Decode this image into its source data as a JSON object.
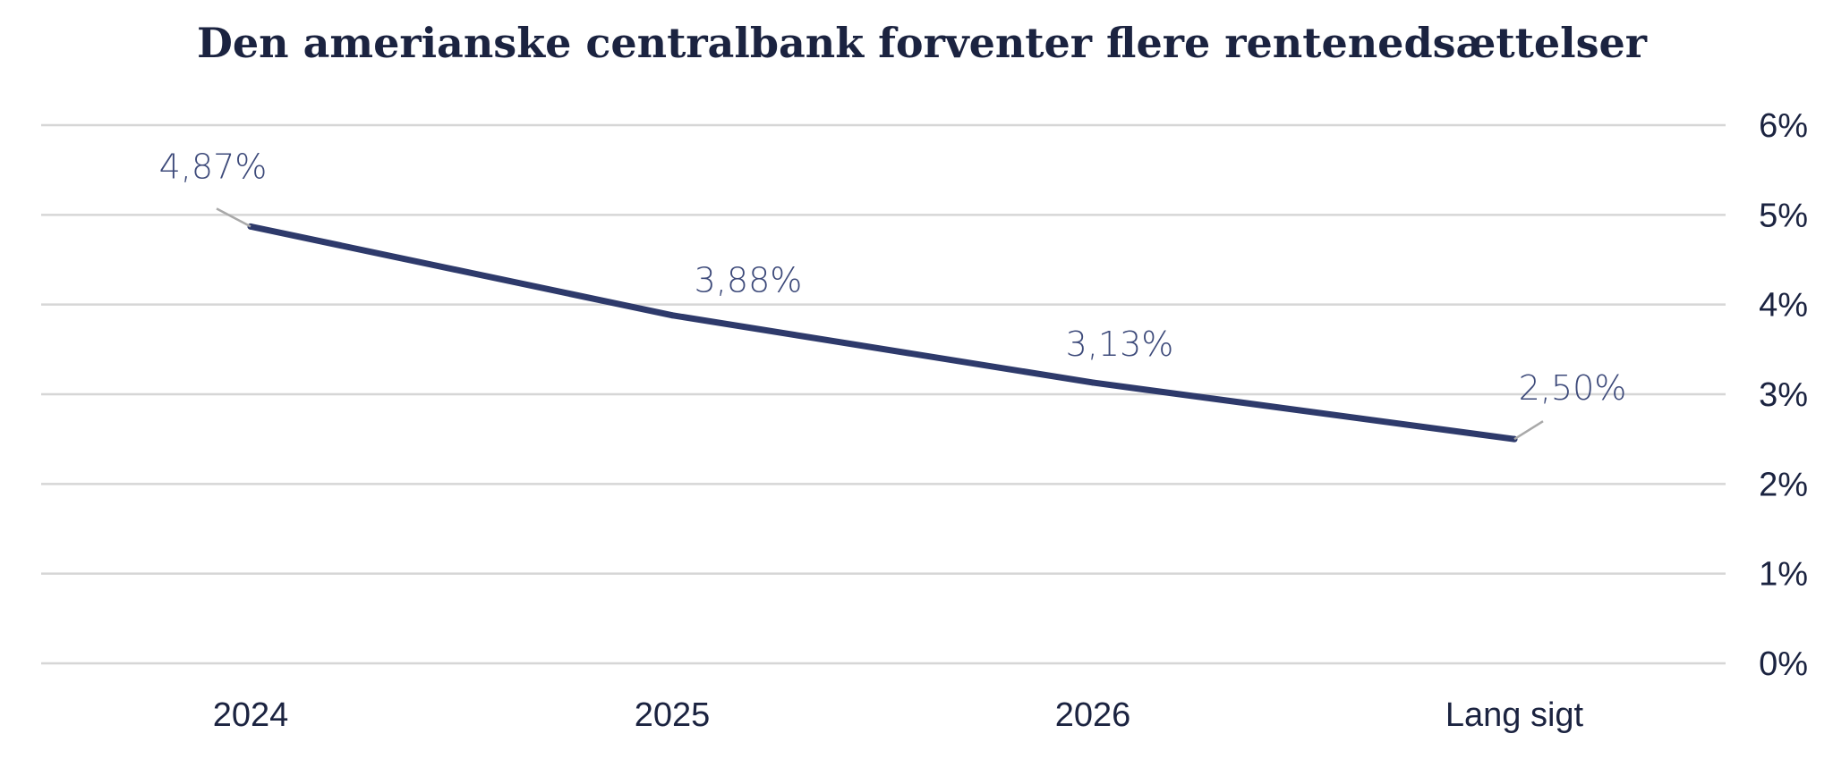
{
  "chart_data": {
    "type": "line",
    "title": "Den amerianske centralbank forventer flere rentenedsættelser",
    "categories": [
      "2024",
      "2025",
      "2026",
      "Lang sigt"
    ],
    "series": [
      {
        "values": [
          4.87,
          3.88,
          3.13,
          2.5
        ],
        "labels": [
          "4,87%",
          "3,88%",
          "3,13%",
          "2,50%"
        ]
      }
    ],
    "y_axis": {
      "min": 0,
      "max": 6,
      "ticks": [
        0,
        1,
        2,
        3,
        4,
        5,
        6
      ],
      "tick_labels": [
        "0%",
        "1%",
        "2%",
        "3%",
        "4%",
        "5%",
        "6%"
      ],
      "position": "right"
    },
    "grid": true,
    "legend": "none",
    "colors": {
      "line": "#2e3a6b",
      "label": "#3d4a7a",
      "leader": "#a9a9a9",
      "grid": "#d6d6d6",
      "text": "#1b2340"
    }
  }
}
